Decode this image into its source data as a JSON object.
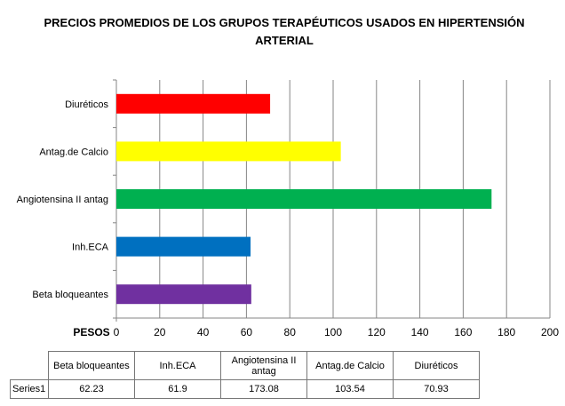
{
  "chart_data": {
    "type": "bar",
    "orientation": "horizontal",
    "title": "PRECIOS PROMEDIOS DE LOS GRUPOS TERAPÉUTICOS USADOS EN HIPERTENSIÓN ARTERIAL",
    "title_lines": [
      "PRECIOS PROMEDIOS DE LOS GRUPOS TERAPÉUTICOS USADOS EN HIPERTENSIÓN",
      "ARTERIAL"
    ],
    "unit_label": "PESOS",
    "categories": [
      "Beta bloqueantes",
      "Inh.ECA",
      "Angiotensina II antag",
      "Antag.de Calcio",
      "Diuréticos"
    ],
    "series": [
      {
        "name": "Series1",
        "values": [
          62.23,
          61.9,
          173.08,
          103.54,
          70.93
        ],
        "colors": [
          "#7030A0",
          "#0070C0",
          "#00B050",
          "#FFFF00",
          "#FF0000"
        ]
      }
    ],
    "xlim": [
      0,
      200
    ],
    "ticks": [
      0,
      20,
      40,
      60,
      80,
      100,
      120,
      140,
      160,
      180,
      200
    ],
    "grid": true,
    "data_table": {
      "headers": [
        "Beta bloqueantes",
        "Inh.ECA",
        "Angiotensina II antag",
        "Antag.de Calcio",
        "Diuréticos"
      ],
      "header_lines": [
        [
          "Beta bloqueantes"
        ],
        [
          "Inh.ECA"
        ],
        [
          "Angiotensina II",
          "antag"
        ],
        [
          "Antag.de Calcio"
        ],
        [
          "Diuréticos"
        ]
      ],
      "row_label": "Series1",
      "values": [
        "62.23",
        "61.9",
        "173.08",
        "103.54",
        "70.93"
      ]
    }
  }
}
